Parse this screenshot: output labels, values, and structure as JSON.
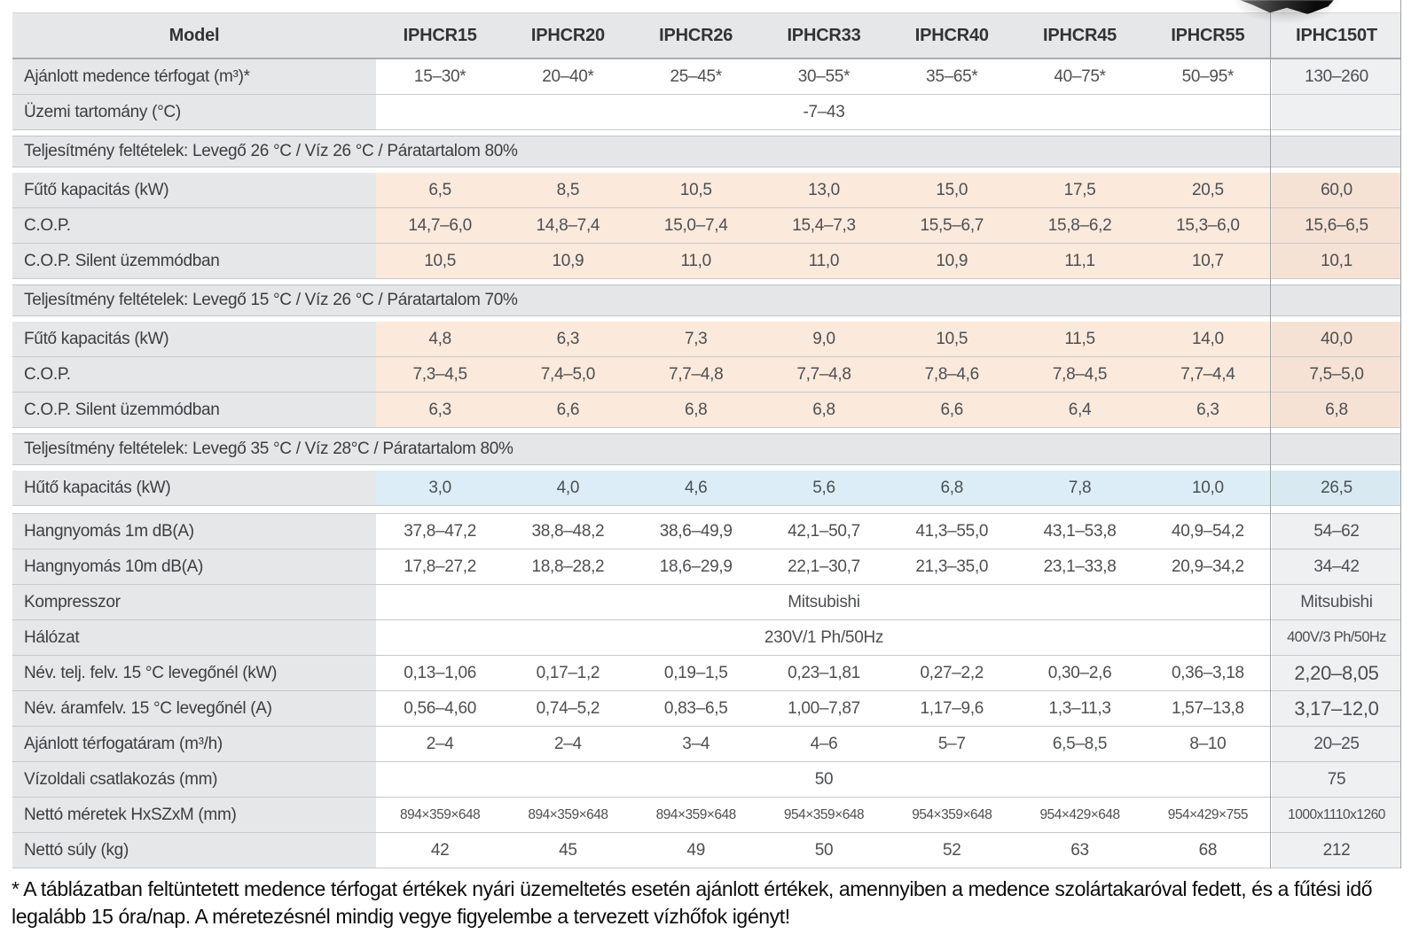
{
  "table": {
    "model_header": "Model",
    "columns": [
      "IPHCR15",
      "IPHCR20",
      "IPHCR26",
      "IPHCR33",
      "IPHCR40",
      "IPHCR45",
      "IPHCR55"
    ],
    "highlight_column": "IPHC150T",
    "rows": [
      {
        "kind": "data",
        "label": "Ajánlott medence térfogat (m³)*",
        "bg": "white",
        "cells": [
          "15–30*",
          "20–40*",
          "25–45*",
          "30–55*",
          "35–65*",
          "40–75*",
          "50–95*"
        ],
        "last": "130–260"
      },
      {
        "kind": "span",
        "label": "Üzemi tartomány (°C)",
        "bg": "white",
        "span": "-7–43",
        "last": ""
      },
      {
        "kind": "section",
        "text": "Teljesítmény feltételek: Levegő 26 °C / Víz 26 °C / Páratartalom 80%"
      },
      {
        "kind": "data",
        "label": "Fűtő kapacitás (kW)",
        "bg": "peach",
        "cells": [
          "6,5",
          "8,5",
          "10,5",
          "13,0",
          "15,0",
          "17,5",
          "20,5"
        ],
        "last": "60,0"
      },
      {
        "kind": "data",
        "label": "C.O.P.",
        "bg": "peach",
        "cells": [
          "14,7–6,0",
          "14,8–7,4",
          "15,0–7,4",
          "15,4–7,3",
          "15,5–6,7",
          "15,8–6,2",
          "15,3–6,0"
        ],
        "last": "15,6–6,5"
      },
      {
        "kind": "data",
        "label": "C.O.P. Silent üzemmódban",
        "bg": "peach",
        "cells": [
          "10,5",
          "10,9",
          "11,0",
          "11,0",
          "10,9",
          "11,1",
          "10,7"
        ],
        "last": "10,1"
      },
      {
        "kind": "section",
        "text": "Teljesítmény feltételek: Levegő 15 °C / Víz 26 °C / Páratartalom 70%"
      },
      {
        "kind": "data",
        "label": "Fűtő kapacitás (kW)",
        "bg": "peach",
        "cells": [
          "4,8",
          "6,3",
          "7,3",
          "9,0",
          "10,5",
          "11,5",
          "14,0"
        ],
        "last": "40,0"
      },
      {
        "kind": "data",
        "label": "C.O.P.",
        "bg": "peach",
        "cells": [
          "7,3–4,5",
          "7,4–5,0",
          "7,7–4,8",
          "7,7–4,8",
          "7,8–4,6",
          "7,8–4,5",
          "7,7–4,4"
        ],
        "last": "7,5–5,0"
      },
      {
        "kind": "data",
        "label": "C.O.P. Silent üzemmódban",
        "bg": "peach",
        "cells": [
          "6,3",
          "6,6",
          "6,8",
          "6,8",
          "6,6",
          "6,4",
          "6,3"
        ],
        "last": "6,8"
      },
      {
        "kind": "section",
        "text": "Teljesítmény feltételek: Levegő 35 °C / Víz 28°C / Páratartalom 80%"
      },
      {
        "kind": "data",
        "label": "Hűtő kapacitás (kW)",
        "bg": "blue",
        "gap_after": true,
        "cells": [
          "3,0",
          "4,0",
          "4,6",
          "5,6",
          "6,8",
          "7,8",
          "10,0"
        ],
        "last": "26,5"
      },
      {
        "kind": "data",
        "label": "Hangnyomás 1m dB(A)",
        "bg": "white",
        "after_gap": true,
        "cells": [
          "37,8–47,2",
          "38,8–48,2",
          "38,6–49,9",
          "42,1–50,7",
          "41,3–55,0",
          "43,1–53,8",
          "40,9–54,2"
        ],
        "last": "54–62"
      },
      {
        "kind": "data",
        "label": "Hangnyomás 10m dB(A)",
        "bg": "white",
        "cells": [
          "17,8–27,2",
          "18,8–28,2",
          "18,6–29,9",
          "22,1–30,7",
          "21,3–35,0",
          "23,1–33,8",
          "20,9–34,2"
        ],
        "last": "34–42"
      },
      {
        "kind": "span",
        "label": "Kompresszor",
        "bg": "white",
        "span": "Mitsubishi",
        "last": "Mitsubishi"
      },
      {
        "kind": "span",
        "label": "Hálózat",
        "bg": "white",
        "tight_last": true,
        "span": "230V/1 Ph/50Hz",
        "last": "400V/3 Ph/50Hz"
      },
      {
        "kind": "data",
        "label": "Név. telj. felv. 15 °C levegőnél (kW)",
        "bg": "white",
        "big_last": true,
        "cells": [
          "0,13–1,06",
          "0,17–1,2",
          "0,19–1,5",
          "0,23–1,81",
          "0,27–2,2",
          "0,30–2,6",
          "0,36–3,18"
        ],
        "last": "2,20–8,05"
      },
      {
        "kind": "data",
        "label": "Név. áramfelv. 15 °C levegőnél (A)",
        "bg": "white",
        "big_last": true,
        "cells": [
          "0,56–4,60",
          "0,74–5,2",
          "0,83–6,5",
          "1,00–7,87",
          "1,17–9,6",
          "1,3–11,3",
          "1,57–13,8"
        ],
        "last": "3,17–12,0"
      },
      {
        "kind": "data",
        "label": "Ajánlott térfogatáram (m³/h)",
        "bg": "white",
        "cells": [
          "2–4",
          "2–4",
          "3–4",
          "4–6",
          "5–7",
          "6,5–8,5",
          "8–10"
        ],
        "last": "20–25"
      },
      {
        "kind": "span",
        "label": "Vízoldali csatlakozás (mm)",
        "bg": "white",
        "span": "50",
        "last": "75"
      },
      {
        "kind": "data",
        "label": "Nettó méretek HxSZxM (mm)",
        "bg": "white",
        "small_vals": true,
        "cells": [
          "894×359×648",
          "894×359×648",
          "894×359×648",
          "954×359×648",
          "954×359×648",
          "954×429×648",
          "954×429×755"
        ],
        "last": "1000x1110x1260"
      },
      {
        "kind": "data",
        "label": "Nettó súly (kg)",
        "bg": "white",
        "cells": [
          "42",
          "45",
          "49",
          "50",
          "52",
          "63",
          "68"
        ],
        "last": "212"
      }
    ]
  },
  "colors": {
    "peach_row": "#fbe9dc",
    "blue_row": "#ddedf7",
    "label_bg": "#e5e7e8",
    "section_bg": "#e4e6e7",
    "highlight_border": "#9fa4a7"
  },
  "decor": {
    "corner_object": "dark-photo-corner"
  },
  "footnote": "* A táblázatban feltüntetett medence térfogat értékek nyári üzemeltetés esetén ajánlott értékek, amennyiben a medence szolártakaróval fedett, és a fűtési idő legalább 15 óra/nap. A méretezésnél mindig vegye figyelembe a tervezett vízhőfok igényt!"
}
